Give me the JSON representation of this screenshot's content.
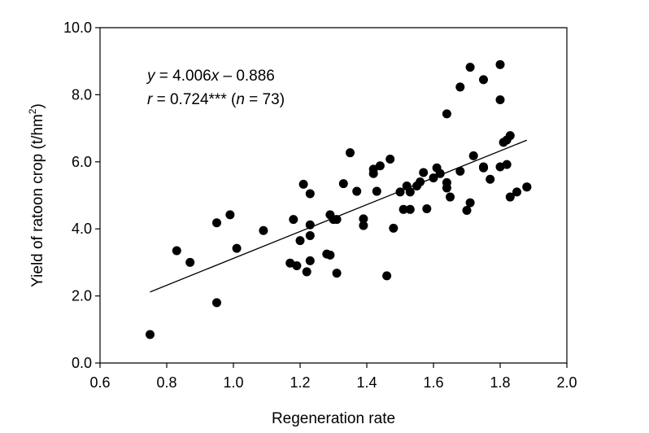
{
  "chart_data": {
    "type": "scatter",
    "xlabel": "Regeneration rate",
    "ylabel": "Yield of ratoon crop (t/hm²)",
    "ylabel_main": "Yield of ratoon crop (t/hm",
    "ylabel_sup": "2",
    "ylabel_tail": ")",
    "xlim": [
      0.6,
      2.0
    ],
    "ylim": [
      0.0,
      10.0
    ],
    "x_ticks": [
      "0.6",
      "0.8",
      "1.0",
      "1.2",
      "1.4",
      "1.6",
      "1.8",
      "2.0"
    ],
    "y_ticks": [
      "0.0",
      "2.0",
      "4.0",
      "6.0",
      "8.0",
      "10.0"
    ],
    "grid": false,
    "legend": "none",
    "fit": {
      "slope": 4.006,
      "intercept": -0.886,
      "x_range": [
        0.75,
        1.88
      ]
    },
    "annotation": {
      "line1": {
        "y_var": "y",
        "eq_mid": " = 4.006",
        "x_var": "x",
        "eq_end": " – 0.886"
      },
      "line2": {
        "r_var": "r",
        "r_mid": " = 0.724*** (",
        "n_var": "n",
        "n_end": " = 73)"
      }
    },
    "points": [
      [
        0.75,
        0.85
      ],
      [
        0.83,
        3.35
      ],
      [
        0.87,
        3.0
      ],
      [
        0.95,
        4.18
      ],
      [
        0.95,
        1.8
      ],
      [
        0.99,
        4.42
      ],
      [
        1.01,
        3.42
      ],
      [
        1.09,
        3.95
      ],
      [
        1.17,
        2.98
      ],
      [
        1.18,
        4.28
      ],
      [
        1.19,
        2.9
      ],
      [
        1.2,
        3.65
      ],
      [
        1.21,
        5.33
      ],
      [
        1.22,
        2.72
      ],
      [
        1.23,
        3.05
      ],
      [
        1.23,
        3.8
      ],
      [
        1.23,
        4.12
      ],
      [
        1.23,
        5.05
      ],
      [
        1.28,
        3.25
      ],
      [
        1.29,
        3.22
      ],
      [
        1.29,
        4.42
      ],
      [
        1.3,
        4.28
      ],
      [
        1.31,
        4.28
      ],
      [
        1.31,
        2.68
      ],
      [
        1.33,
        5.35
      ],
      [
        1.35,
        6.27
      ],
      [
        1.37,
        5.12
      ],
      [
        1.39,
        4.3
      ],
      [
        1.39,
        4.1
      ],
      [
        1.42,
        5.78
      ],
      [
        1.42,
        5.65
      ],
      [
        1.43,
        5.12
      ],
      [
        1.44,
        5.88
      ],
      [
        1.46,
        2.6
      ],
      [
        1.47,
        6.08
      ],
      [
        1.48,
        4.02
      ],
      [
        1.5,
        5.1
      ],
      [
        1.51,
        4.58
      ],
      [
        1.52,
        5.28
      ],
      [
        1.53,
        4.58
      ],
      [
        1.53,
        5.1
      ],
      [
        1.55,
        5.28
      ],
      [
        1.56,
        5.4
      ],
      [
        1.57,
        5.68
      ],
      [
        1.58,
        4.6
      ],
      [
        1.6,
        5.52
      ],
      [
        1.61,
        5.82
      ],
      [
        1.62,
        5.65
      ],
      [
        1.64,
        5.38
      ],
      [
        1.64,
        5.22
      ],
      [
        1.64,
        7.43
      ],
      [
        1.65,
        4.95
      ],
      [
        1.68,
        8.23
      ],
      [
        1.68,
        5.72
      ],
      [
        1.7,
        4.55
      ],
      [
        1.71,
        8.82
      ],
      [
        1.71,
        4.78
      ],
      [
        1.72,
        6.18
      ],
      [
        1.75,
        8.45
      ],
      [
        1.75,
        5.85
      ],
      [
        1.75,
        5.82
      ],
      [
        1.77,
        5.48
      ],
      [
        1.8,
        8.9
      ],
      [
        1.8,
        7.85
      ],
      [
        1.8,
        5.85
      ],
      [
        1.81,
        6.58
      ],
      [
        1.82,
        5.92
      ],
      [
        1.82,
        6.65
      ],
      [
        1.83,
        6.78
      ],
      [
        1.83,
        4.95
      ],
      [
        1.85,
        5.1
      ],
      [
        1.88,
        5.25
      ],
      [
        1.88,
        5.25
      ]
    ]
  }
}
